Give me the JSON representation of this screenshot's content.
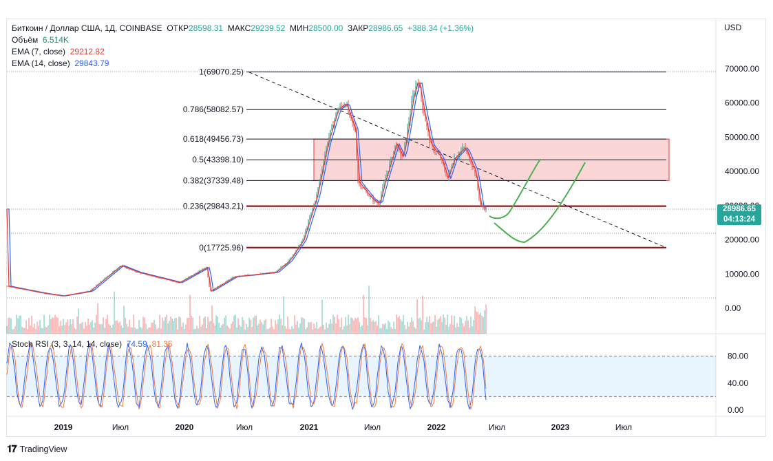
{
  "header": {
    "symbol": "Биткоин / Доллар США, 1Д, COINBASE",
    "open_label": "ОТКР",
    "open": "28598.31",
    "high_label": "МАКС",
    "high": "29239.52",
    "low_label": "МИН",
    "low": "28500.00",
    "close_label": "ЗАКР",
    "close": "28986.65",
    "change": "+388.34 (+1.36%)"
  },
  "indicators": {
    "volume_label": "Объём",
    "volume_value": "6.514K",
    "ema7_label": "EMA (7, close)",
    "ema7_value": "29212.82",
    "ema14_label": "EMA (14, close)",
    "ema14_value": "29843.79",
    "stoch_label": "Stoch RSI (3, 3, 14, 14, close)",
    "stoch_k": "74.59",
    "stoch_d": "81.35"
  },
  "price_axis": {
    "currency": "USD",
    "ticks": [
      "70000.00",
      "60000.00",
      "50000.00",
      "40000.00",
      "30000.00",
      "20000.00",
      "10000.00",
      "0.00"
    ],
    "last_price": "28986.65",
    "countdown": "04:13:24"
  },
  "stoch_axis": {
    "ticks": [
      "80.00",
      "40.00",
      "0.00"
    ]
  },
  "time_axis": {
    "labels": [
      "2019",
      "Июл",
      "2020",
      "Июл",
      "2021",
      "Июл",
      "2022",
      "Июл",
      "2023",
      "Июл"
    ]
  },
  "colors": {
    "up": "#26a69a",
    "down": "#ef5350",
    "ema7": "#e53935",
    "ema14": "#2962ff",
    "zone": "#f8c8c8",
    "zone_border": "#e53935",
    "green_path": "#4caf50",
    "stoch_k": "#2962ff",
    "stoch_d": "#ef7b3b",
    "fib_line": "#131722",
    "support_line": "#8b1a1a"
  },
  "footer": {
    "brand": "TradingView",
    "logo_icon": "tradingview-logo-icon"
  },
  "chart_data": {
    "type": "line",
    "title": "Биткоин / Доллар США, 1Д, COINBASE",
    "ylabel": "USD",
    "ylim": [
      0,
      72000
    ],
    "x": [
      "2018-10",
      "2019-01",
      "2019-04",
      "2019-06",
      "2019-07",
      "2019-10",
      "2020-01",
      "2020-03",
      "2020-07",
      "2020-10",
      "2020-12",
      "2021-01",
      "2021-02",
      "2021-04",
      "2021-05",
      "2021-07",
      "2021-09",
      "2021-11",
      "2022-01",
      "2022-03",
      "2022-05"
    ],
    "series": [
      {
        "name": "Биткоин",
        "values": [
          6500,
          3700,
          5000,
          12500,
          10500,
          8300,
          7200,
          5000,
          9200,
          11500,
          19000,
          33000,
          48000,
          61000,
          37000,
          30000,
          47000,
          67000,
          38000,
          45000,
          29000
        ]
      }
    ],
    "fib_levels": [
      {
        "label": "1(69070.25)",
        "value": 69070.25
      },
      {
        "label": "0.786(58082.57)",
        "value": 58082.57
      },
      {
        "label": "0.618(49456.73)",
        "value": 49456.73
      },
      {
        "label": "0.5(43398.10)",
        "value": 43398.1
      },
      {
        "label": "0.382(37339.48)",
        "value": 37339.48
      },
      {
        "label": "0.236(29843.21)",
        "value": 29843.21
      },
      {
        "label": "0(17725.96)",
        "value": 17725.96
      }
    ],
    "zone": {
      "from": 37339.48,
      "to": 49456.73
    },
    "stoch_rsi": {
      "k": 74.59,
      "d": 81.35,
      "bands": [
        80,
        20
      ],
      "ylim": [
        0,
        100
      ]
    }
  }
}
